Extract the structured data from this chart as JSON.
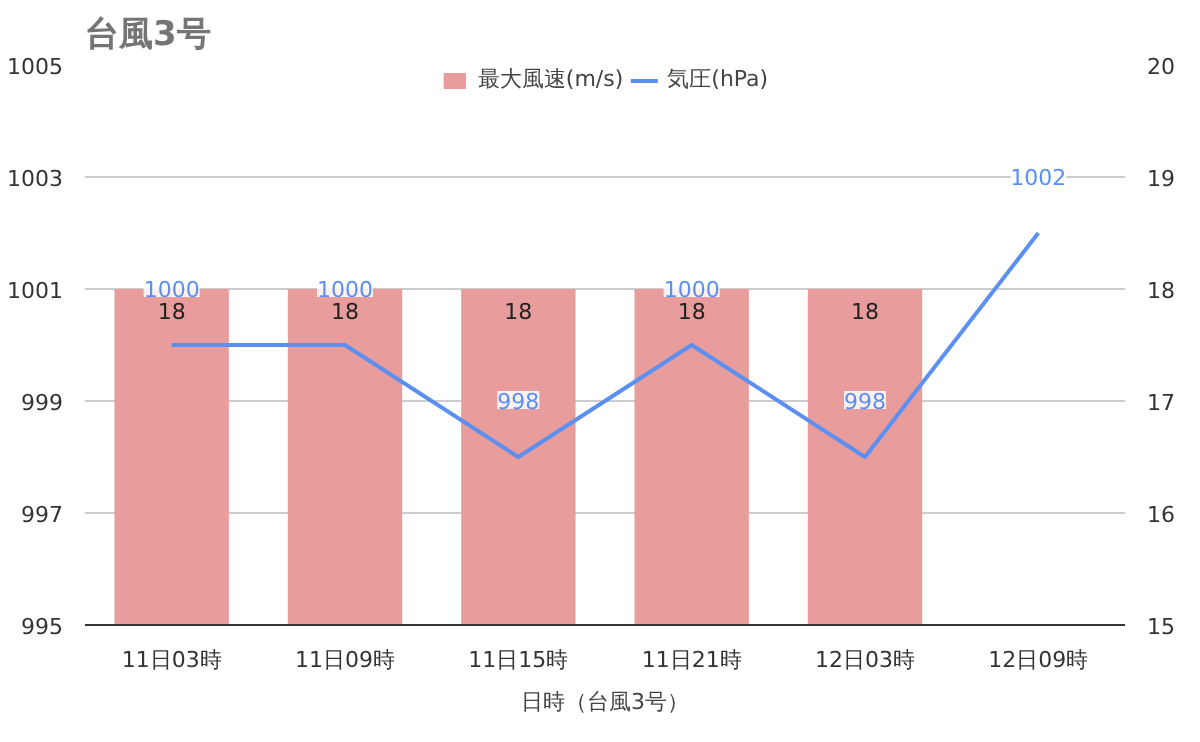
{
  "chart_data": {
    "type": "bar",
    "title": "台風3号",
    "xlabel": "日時（台風3号）",
    "categories": [
      "11日03時",
      "11日09時",
      "11日15時",
      "11日21時",
      "12日03時",
      "12日09時"
    ],
    "series": [
      {
        "name": "最大風速(m/s)",
        "axis": "y2",
        "color": "#e89c9c",
        "values": [
          18,
          18,
          18,
          18,
          18,
          null
        ]
      },
      {
        "name": "気圧(hPa)",
        "type": "line",
        "color": "#5b8ff0",
        "values": [
          1000,
          1000,
          998,
          1000,
          998,
          1002
        ]
      }
    ],
    "ylim": [
      995,
      1005
    ],
    "yticks": [
      995,
      997,
      999,
      1001,
      1003,
      1005
    ],
    "y2lim": [
      15,
      20
    ],
    "y2ticks": [
      15,
      16,
      17,
      18,
      19,
      20
    ],
    "grid": "y",
    "legend": "top",
    "data_labels": true
  }
}
